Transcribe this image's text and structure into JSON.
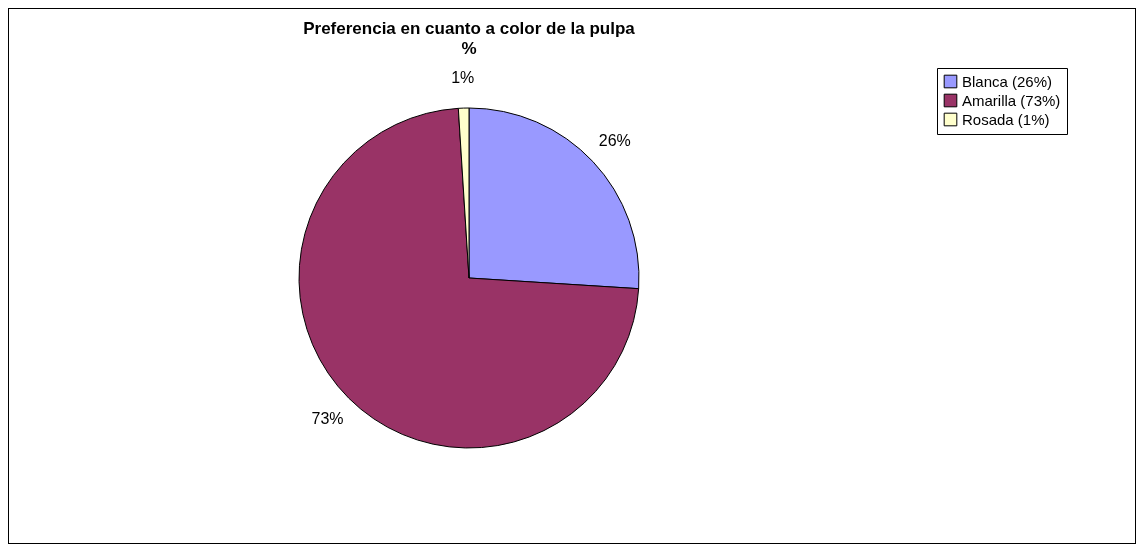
{
  "chart_data": {
    "type": "pie",
    "title": "Preferencia en cuanto a color de la pulpa",
    "subtitle": "%",
    "categories": [
      "Blanca (26%)",
      "Amarilla (73%)",
      "Rosada (1%)"
    ],
    "values": [
      26,
      73,
      1
    ],
    "colors": [
      "#9999ff",
      "#993366",
      "#ffffcc"
    ],
    "value_labels": [
      "26%",
      "73%",
      "1%"
    ],
    "legend": "right"
  }
}
